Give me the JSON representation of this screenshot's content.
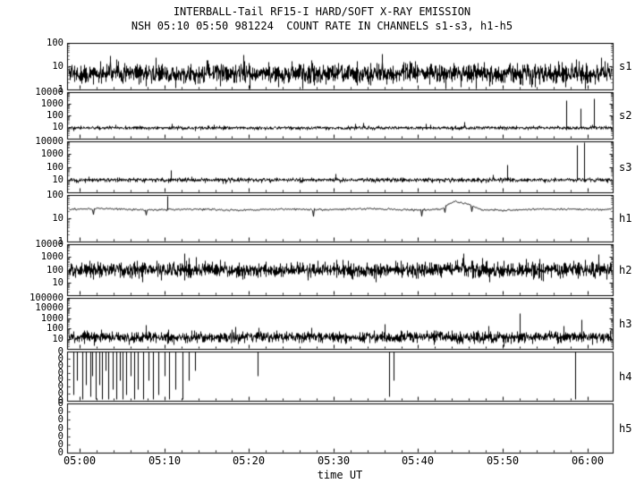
{
  "header": {
    "title_line1": "INTERBALL-Tail RF15-I HARD/SOFT X-RAY EMISSION",
    "title_line2": "NSH 05:10 05:50 981224  COUNT RATE IN CHANNELS s1-s3, h1-h5"
  },
  "x_axis": {
    "label": "time UT",
    "tick_labels": [
      "05:00",
      "05:10",
      "05:20",
      "05:30",
      "05:40",
      "05:50",
      "06:00"
    ],
    "tick_minutes": [
      0,
      10,
      20,
      30,
      40,
      50,
      60
    ],
    "start_minute": -1.5,
    "end_minute": 63
  },
  "colors": {
    "foreground": "#000000",
    "background": "#ffffff"
  },
  "chart_data": {
    "type": "line",
    "layout": "8 stacked subplots sharing one time axis",
    "panels": [
      {
        "id": "s1",
        "label": "s1",
        "scale": "log",
        "ylim": [
          1,
          100
        ],
        "yticks": [
          100,
          10,
          1
        ],
        "style": "band",
        "baseline": 5,
        "noise_decades": 0.22,
        "spike_prob": 0,
        "spike_mult": 0,
        "spikes": []
      },
      {
        "id": "s2",
        "label": "s2",
        "scale": "log",
        "ylim": [
          1,
          10000
        ],
        "yticks": [
          10000,
          1000,
          100,
          10
        ],
        "style": "band",
        "baseline": 9,
        "noise_decades": 0.07,
        "spike_prob": 0.012,
        "spike_mult": 1.5,
        "spikes": [
          {
            "t": 57.5,
            "v": 2000
          },
          {
            "t": 59.2,
            "v": 400
          },
          {
            "t": 60.8,
            "v": 3000
          }
        ]
      },
      {
        "id": "s3",
        "label": "s3",
        "scale": "log",
        "ylim": [
          1,
          10000
        ],
        "yticks": [
          10000,
          1000,
          100,
          10
        ],
        "style": "band",
        "baseline": 10,
        "noise_decades": 0.08,
        "spike_prob": 0.012,
        "spike_mult": 1.5,
        "spikes": [
          {
            "t": 10.8,
            "v": 60
          },
          {
            "t": 50.5,
            "v": 150
          },
          {
            "t": 58.8,
            "v": 5000
          },
          {
            "t": 59.6,
            "v": 9000
          }
        ]
      },
      {
        "id": "h1",
        "label": "h1",
        "scale": "log",
        "ylim": [
          1,
          100
        ],
        "yticks": [
          100,
          10,
          1
        ],
        "style": "smooth",
        "baseline": 25,
        "noise_decades": 0.02,
        "bump": {
          "t0": 42.8,
          "peak": 44.3,
          "t1": 47.5,
          "factor": 2.2
        },
        "spikes": [
          {
            "t": 10.3,
            "v": 120
          }
        ]
      },
      {
        "id": "h2",
        "label": "h2",
        "scale": "log",
        "ylim": [
          1,
          10000
        ],
        "yticks": [
          10000,
          1000,
          100,
          10
        ],
        "style": "band",
        "baseline": 100,
        "noise_decades": 0.3,
        "spike_prob": 0.03,
        "spike_mult": 6,
        "bump": {
          "t0": 42.8,
          "peak": 44.3,
          "t1": 47,
          "factor": 1.7
        },
        "spikes": []
      },
      {
        "id": "h3",
        "label": "h3",
        "scale": "log",
        "ylim": [
          1,
          100000
        ],
        "yticks": [
          100000,
          10000,
          1000,
          100,
          10
        ],
        "style": "band",
        "baseline": 15,
        "noise_decades": 0.28,
        "spike_prob": 0.025,
        "spike_mult": 8,
        "spikes": [
          {
            "t": 36,
            "v": 300
          },
          {
            "t": 52,
            "v": 3000
          },
          {
            "t": 59.3,
            "v": 800
          }
        ]
      },
      {
        "id": "h4",
        "label": "h4",
        "scale": "linear",
        "yticks": [
          "0",
          "0",
          "0",
          "0",
          "0",
          "0",
          "0",
          "0"
        ],
        "style": "dropout",
        "baseline": 0,
        "dropouts": [
          [
            -0.8,
            0.9
          ],
          [
            -0.3,
            0.6
          ],
          [
            0.3,
            1.0
          ],
          [
            0.7,
            0.7
          ],
          [
            1.2,
            0.95
          ],
          [
            1.5,
            0.5
          ],
          [
            1.9,
            1.0
          ],
          [
            2.3,
            0.7
          ],
          [
            2.6,
            1.0
          ],
          [
            3.0,
            0.4
          ],
          [
            3.4,
            1.0
          ],
          [
            3.9,
            0.8
          ],
          [
            4.3,
            1.0
          ],
          [
            4.7,
            0.6
          ],
          [
            5.1,
            1.0
          ],
          [
            5.5,
            0.9
          ],
          [
            6.0,
            0.5
          ],
          [
            6.4,
            1.0
          ],
          [
            6.9,
            0.8
          ],
          [
            7.5,
            1.0
          ],
          [
            8.1,
            0.6
          ],
          [
            8.7,
            1.0
          ],
          [
            9.3,
            0.9
          ],
          [
            10.0,
            0.5
          ],
          [
            10.6,
            1.0
          ],
          [
            11.3,
            0.8
          ],
          [
            12.1,
            1.0
          ],
          [
            12.9,
            0.6
          ],
          [
            13.6,
            0.4
          ],
          [
            21.0,
            0.5
          ],
          [
            36.6,
            0.95
          ],
          [
            37.1,
            0.6
          ],
          [
            58.6,
            1.0
          ]
        ]
      },
      {
        "id": "h5",
        "label": "h5",
        "scale": "linear",
        "yticks": [
          "0",
          "0",
          "0",
          "0",
          "0",
          "0",
          "0"
        ],
        "style": "none",
        "baseline": 0
      }
    ]
  }
}
